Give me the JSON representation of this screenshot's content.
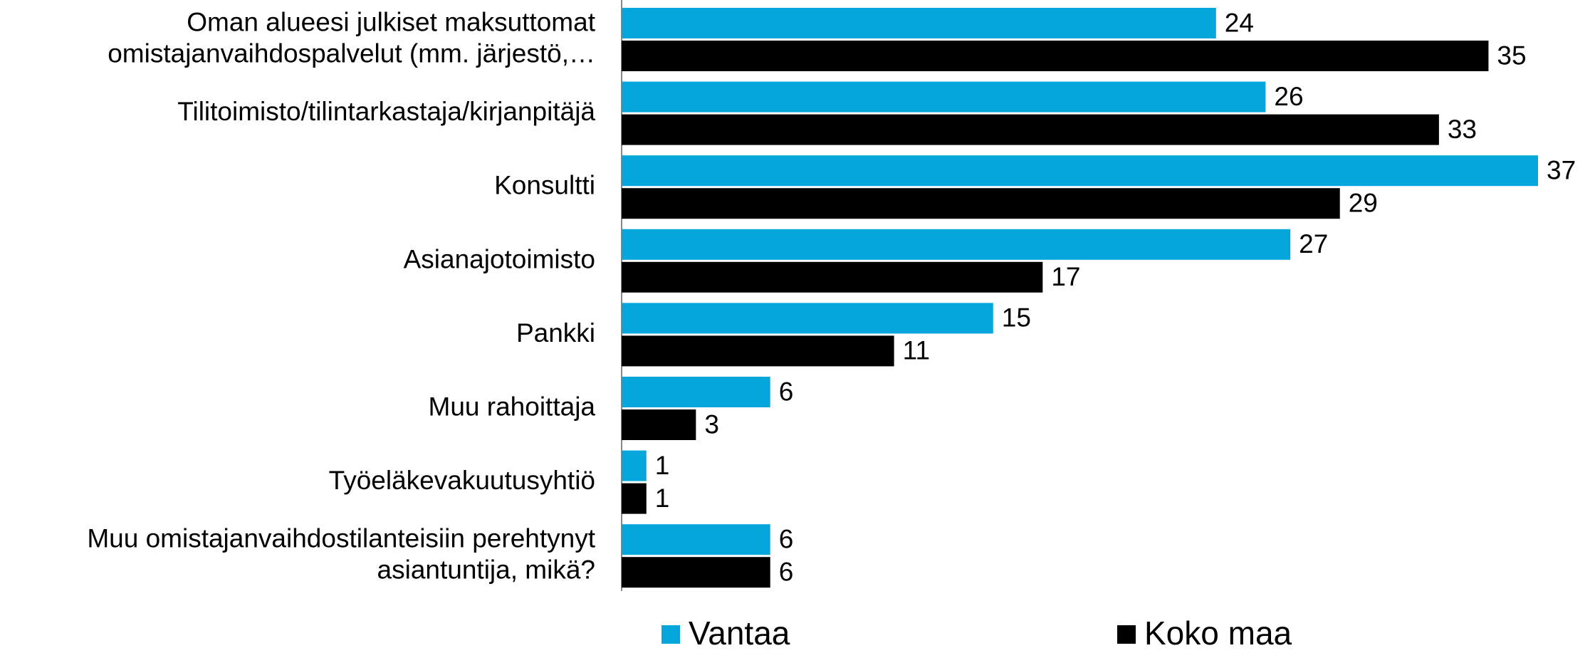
{
  "chart_data": {
    "type": "hbar",
    "categories": [
      "Oman alueesi julkiset maksuttomat\nomistajanvaihdospalvelut (mm. järjestö,…",
      "Tilitoimisto/tilintarkastaja/kirjanpitäjä",
      "Konsultti",
      "Asianajotoimisto",
      "Pankki",
      "Muu rahoittaja",
      "Työeläkevakuutusyhtiö",
      "Muu omistajanvaihdostilanteisiin perehtynyt\nasiantuntija, mikä?"
    ],
    "series": [
      {
        "name": "Vantaa",
        "color": "#05a6dc",
        "values": [
          24,
          26,
          37,
          27,
          15,
          6,
          1,
          6
        ]
      },
      {
        "name": "Koko maa",
        "color": "#000000",
        "values": [
          35,
          33,
          29,
          17,
          11,
          3,
          1,
          6
        ]
      }
    ],
    "legend": "bottom"
  }
}
